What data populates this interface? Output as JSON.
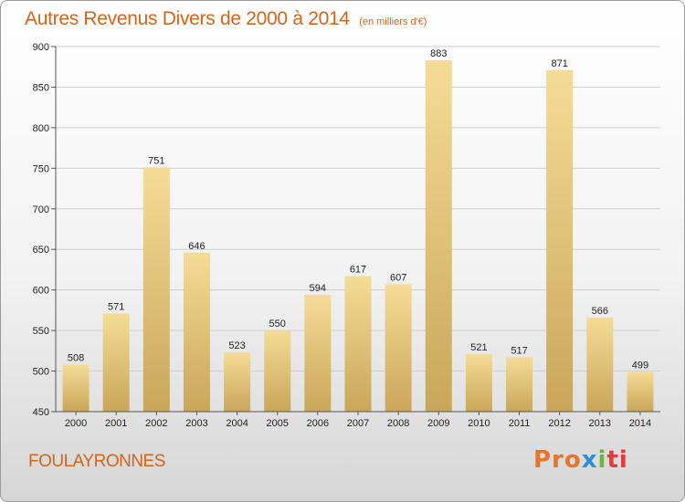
{
  "header": {
    "title": "Autres Revenus Divers de 2000 à 2014",
    "subtitle": "(en milliers d'€)"
  },
  "footer": {
    "commune": "FOULAYRONNES",
    "logo": [
      "Pro",
      "x",
      "i",
      "ti"
    ]
  },
  "colors": {
    "accent": "#d2651a",
    "bar_light": "#f5dc96",
    "bar_dark": "#c9a65a"
  },
  "chart_data": {
    "type": "bar",
    "title": "Autres Revenus Divers de 2000 à 2014",
    "subtitle": "(en milliers d'€)",
    "categories": [
      "2000",
      "2001",
      "2002",
      "2003",
      "2004",
      "2005",
      "2006",
      "2007",
      "2008",
      "2009",
      "2010",
      "2011",
      "2012",
      "2013",
      "2014"
    ],
    "values": [
      508,
      571,
      751,
      646,
      523,
      550,
      594,
      617,
      607,
      883,
      521,
      517,
      871,
      566,
      499
    ],
    "ylim": [
      450,
      900
    ],
    "yticks": [
      450,
      500,
      550,
      600,
      650,
      700,
      750,
      800,
      850,
      900
    ],
    "grid": true,
    "legend": "none"
  }
}
